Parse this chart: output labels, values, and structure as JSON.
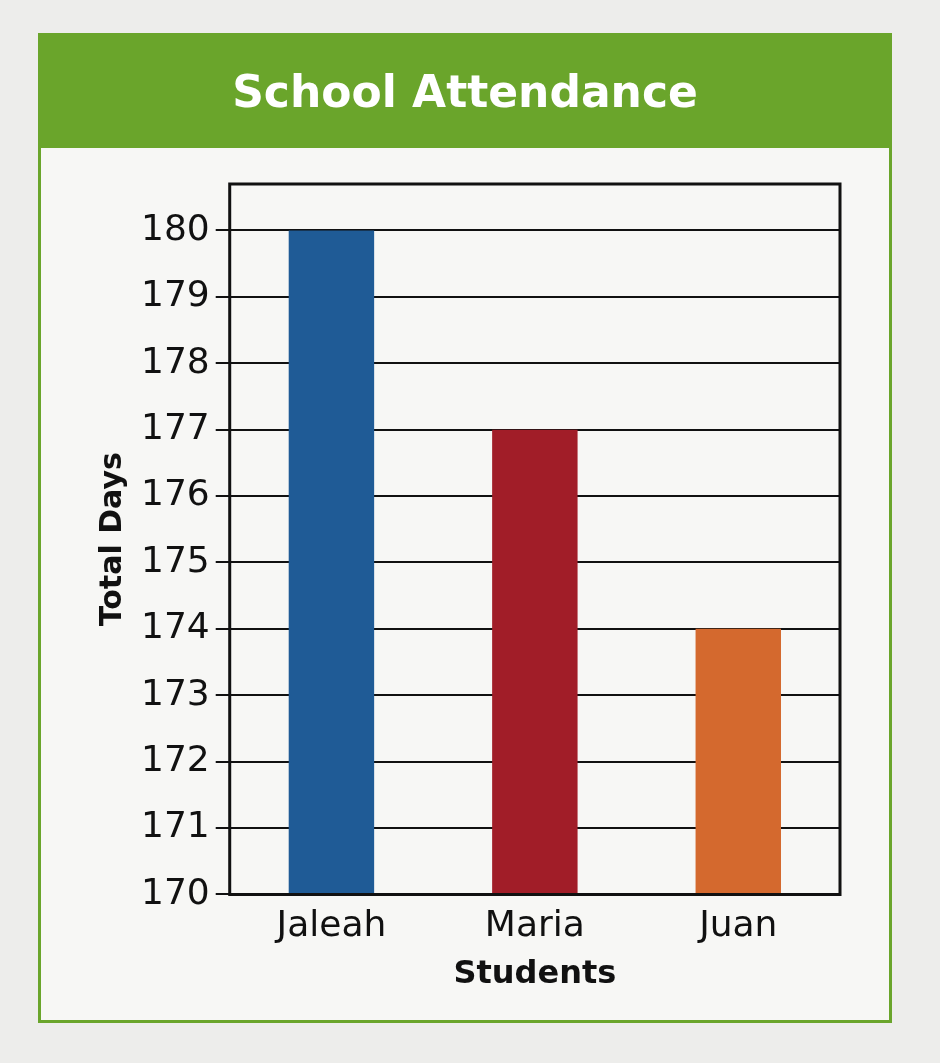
{
  "chart_data": {
    "type": "bar",
    "title": "School Attendance",
    "xlabel": "Students",
    "ylabel": "Total Days",
    "categories": [
      "Jaleah",
      "Maria",
      "Juan"
    ],
    "values": [
      180,
      177,
      174
    ],
    "colors": [
      "#1f5b96",
      "#a11d28",
      "#d4692e"
    ],
    "ylim": [
      170,
      180.7
    ],
    "yticks": [
      170,
      171,
      172,
      173,
      174,
      175,
      176,
      177,
      178,
      179,
      180
    ],
    "grid": "y",
    "legend": false
  }
}
